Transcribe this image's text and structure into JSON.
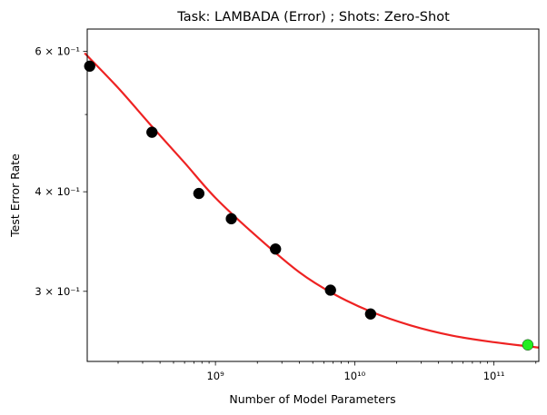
{
  "chart_data": {
    "type": "scatter",
    "title": "Task: LAMBADA (Error) ; Shots: Zero-Shot",
    "xlabel": "Number of Model Parameters",
    "ylabel": "Test Error Rate",
    "x_scale": "log",
    "y_scale": "log",
    "xlim": [
      120000000.0,
      210000000000.0
    ],
    "ylim": [
      0.245,
      0.64
    ],
    "x_ticks": [
      {
        "value": 1000000000.0,
        "label": "10⁹"
      },
      {
        "value": 10000000000.0,
        "label": "10¹⁰"
      },
      {
        "value": 100000000000.0,
        "label": "10¹¹"
      }
    ],
    "y_ticks": [
      {
        "value": 0.3,
        "label": "3 × 10⁻¹"
      },
      {
        "value": 0.4,
        "label": "4 × 10⁻¹"
      },
      {
        "value": 0.6,
        "label": "6 × 10⁻¹"
      }
    ],
    "grid": false,
    "series": [
      {
        "kind": "points",
        "color": "#000000",
        "points": [
          {
            "x": 125000000.0,
            "y": 0.575
          },
          {
            "x": 350000000.0,
            "y": 0.475
          },
          {
            "x": 760000000.0,
            "y": 0.398
          },
          {
            "x": 1300000000.0,
            "y": 0.37
          },
          {
            "x": 2700000000.0,
            "y": 0.339
          },
          {
            "x": 6700000000.0,
            "y": 0.301
          },
          {
            "x": 13000000000.0,
            "y": 0.281
          }
        ]
      },
      {
        "kind": "points",
        "color": "#22ee22",
        "points": [
          {
            "x": 175000000000.0,
            "y": 0.257
          }
        ]
      },
      {
        "kind": "curve",
        "color": "#ee2222",
        "points": [
          {
            "x": 115000000.0,
            "y": 0.597
          },
          {
            "x": 200000000.0,
            "y": 0.54
          },
          {
            "x": 350000000.0,
            "y": 0.483
          },
          {
            "x": 600000000.0,
            "y": 0.435
          },
          {
            "x": 1000000000.0,
            "y": 0.393
          },
          {
            "x": 2000000000.0,
            "y": 0.351
          },
          {
            "x": 4000000000.0,
            "y": 0.317
          },
          {
            "x": 7000000000.0,
            "y": 0.298
          },
          {
            "x": 13000000000.0,
            "y": 0.283
          },
          {
            "x": 25000000000.0,
            "y": 0.272
          },
          {
            "x": 50000000000.0,
            "y": 0.264
          },
          {
            "x": 100000000000.0,
            "y": 0.259
          },
          {
            "x": 210000000000.0,
            "y": 0.255
          }
        ]
      }
    ]
  }
}
